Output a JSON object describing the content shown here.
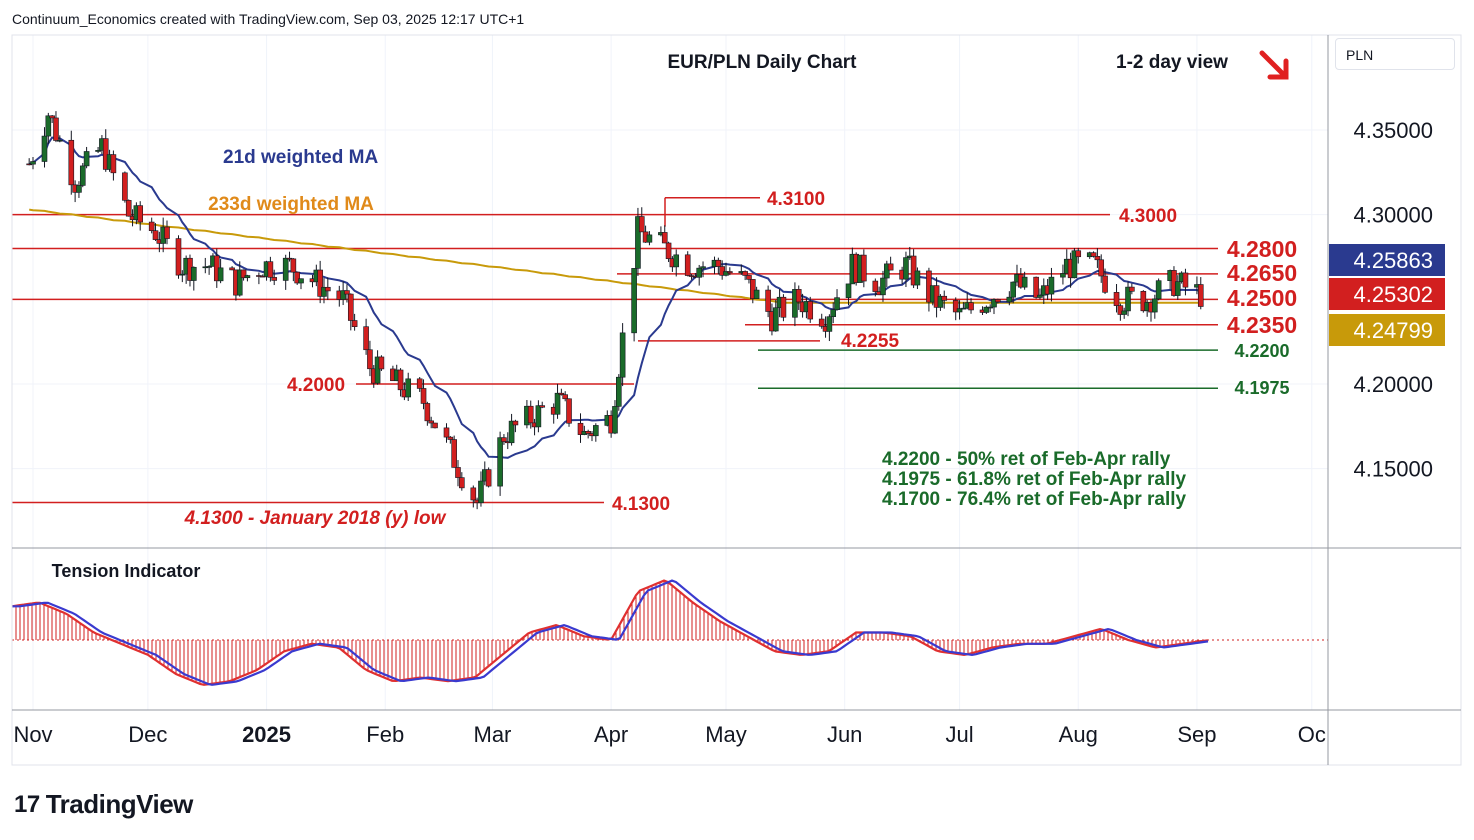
{
  "header": {
    "attribution": "Continuum_Economics created with TradingView.com, Sep 03, 2025 12:17 UTC+1"
  },
  "brand": {
    "name": "TradingView"
  },
  "currency_box": "PLN",
  "chart_data": {
    "type": "candlestick",
    "title": "EUR/PLN Daily Chart",
    "view": "1-2 day view",
    "view_arrow": "red-down-right-arrow-icon",
    "ylim": [
      4.1,
      4.4
    ],
    "y_ticks": [
      "4.35000",
      "4.30000",
      "4.20000",
      "4.15000"
    ],
    "x_ticks": [
      "Nov",
      "Dec",
      "2025",
      "Feb",
      "Mar",
      "Apr",
      "May",
      "Jun",
      "Jul",
      "Aug",
      "Sep",
      "Oc"
    ],
    "price_badges": [
      {
        "label": "4.25863",
        "color": "#2a3a8f"
      },
      {
        "label": "4.25302",
        "color": "#d21f1f"
      },
      {
        "label": "4.24799",
        "color": "#c89a0a"
      }
    ],
    "levels": [
      {
        "value": 4.31,
        "label": "4.3100",
        "color": "#d21f1f"
      },
      {
        "value": 4.3,
        "label": "4.3000",
        "color": "#d21f1f"
      },
      {
        "value": 4.28,
        "label": "4.2800",
        "color": "#d21f1f"
      },
      {
        "value": 4.265,
        "label": "4.2650",
        "color": "#d21f1f"
      },
      {
        "value": 4.25,
        "label": "4.2500",
        "color": "#d21f1f"
      },
      {
        "value": 4.235,
        "label": "4.2350",
        "color": "#d21f1f"
      },
      {
        "value": 4.2255,
        "label": "4.2255",
        "color": "#d21f1f"
      },
      {
        "value": 4.22,
        "label": "4.2200",
        "color": "#1a6b2a"
      },
      {
        "value": 4.2,
        "label": "4.2000",
        "color": "#d21f1f"
      },
      {
        "value": 4.1975,
        "label": "4.1975",
        "color": "#1a6b2a"
      },
      {
        "value": 4.13,
        "label": "4.1300",
        "color": "#d21f1f"
      }
    ],
    "annotations": [
      {
        "text": "21d weighted MA",
        "color": "#2a3a8f"
      },
      {
        "text": "233d weighted MA",
        "color": "#e08a1a"
      },
      {
        "text": "4.1300 - January 2018 (y) low",
        "color": "#d21f1f"
      },
      {
        "text": "4.2200 - 50% ret of Feb-Apr rally",
        "color": "#1a6b2a"
      },
      {
        "text": "4.1975 - 61.8% ret of Feb-Apr rally",
        "color": "#1a6b2a"
      },
      {
        "text": "4.1700 - 76.4% ret of Feb-Apr rally",
        "color": "#1a6b2a"
      }
    ],
    "panels": [
      {
        "name": "price",
        "series": [
          "EUR/PLN",
          "21d weighted MA",
          "233d weighted MA"
        ]
      },
      {
        "name": "Tension Indicator",
        "title": "Tension Indicator"
      }
    ],
    "series": [
      {
        "name": "EUR/PLN",
        "color_up": "#1a6b2a",
        "color_down": "#d21f1f"
      },
      {
        "name": "21d weighted MA",
        "color": "#2a3a8f"
      },
      {
        "name": "233d weighted MA",
        "color": "#c89a0a"
      }
    ],
    "date_anchors": [
      {
        "date": "2024-10-31",
        "close": 4.33
      },
      {
        "date": "2024-11-05",
        "close": 4.36
      },
      {
        "date": "2024-11-12",
        "close": 4.32
      },
      {
        "date": "2024-11-19",
        "close": 4.34
      },
      {
        "date": "2024-11-26",
        "close": 4.3
      },
      {
        "date": "2024-12-03",
        "close": 4.29
      },
      {
        "date": "2024-12-10",
        "close": 4.27
      },
      {
        "date": "2024-12-17",
        "close": 4.27
      },
      {
        "date": "2024-12-24",
        "close": 4.26
      },
      {
        "date": "2024-12-31",
        "close": 4.27
      },
      {
        "date": "2025-01-07",
        "close": 4.27
      },
      {
        "date": "2025-01-14",
        "close": 4.26
      },
      {
        "date": "2025-01-21",
        "close": 4.25
      },
      {
        "date": "2025-01-28",
        "close": 4.21
      },
      {
        "date": "2025-02-04",
        "close": 4.2
      },
      {
        "date": "2025-02-11",
        "close": 4.19
      },
      {
        "date": "2025-02-18",
        "close": 4.16
      },
      {
        "date": "2025-02-25",
        "close": 4.13
      },
      {
        "date": "2025-03-04",
        "close": 4.17
      },
      {
        "date": "2025-03-11",
        "close": 4.18
      },
      {
        "date": "2025-03-18",
        "close": 4.19
      },
      {
        "date": "2025-03-25",
        "close": 4.17
      },
      {
        "date": "2025-04-01",
        "close": 4.18
      },
      {
        "date": "2025-04-08",
        "close": 4.29
      },
      {
        "date": "2025-04-15",
        "close": 4.28
      },
      {
        "date": "2025-04-22",
        "close": 4.27
      },
      {
        "date": "2025-04-29",
        "close": 4.27
      },
      {
        "date": "2025-05-06",
        "close": 4.26
      },
      {
        "date": "2025-05-13",
        "close": 4.24
      },
      {
        "date": "2025-05-20",
        "close": 4.25
      },
      {
        "date": "2025-05-27",
        "close": 4.24
      },
      {
        "date": "2025-06-03",
        "close": 4.27
      },
      {
        "date": "2025-06-10",
        "close": 4.26
      },
      {
        "date": "2025-06-17",
        "close": 4.27
      },
      {
        "date": "2025-06-24",
        "close": 4.25
      },
      {
        "date": "2025-07-01",
        "close": 4.24
      },
      {
        "date": "2025-07-08",
        "close": 4.25
      },
      {
        "date": "2025-07-15",
        "close": 4.26
      },
      {
        "date": "2025-07-22",
        "close": 4.25
      },
      {
        "date": "2025-07-29",
        "close": 4.27
      },
      {
        "date": "2025-08-05",
        "close": 4.27
      },
      {
        "date": "2025-08-12",
        "close": 4.25
      },
      {
        "date": "2025-08-19",
        "close": 4.25
      },
      {
        "date": "2025-08-26",
        "close": 4.26
      },
      {
        "date": "2025-09-02",
        "close": 4.253
      }
    ],
    "tension": {
      "values": [
        0.45,
        0.5,
        0.35,
        0.1,
        -0.05,
        -0.2,
        -0.45,
        -0.6,
        -0.55,
        -0.4,
        -0.15,
        -0.05,
        -0.1,
        -0.4,
        -0.55,
        -0.5,
        -0.55,
        -0.5,
        -0.2,
        0.1,
        0.2,
        0.05,
        0.0,
        0.65,
        0.8,
        0.5,
        0.25,
        0.05,
        -0.15,
        -0.2,
        -0.15,
        0.1,
        0.1,
        0.05,
        -0.15,
        -0.2,
        -0.1,
        -0.05,
        -0.05,
        0.05,
        0.15,
        0.0,
        -0.1,
        -0.05,
        0.0
      ]
    }
  }
}
